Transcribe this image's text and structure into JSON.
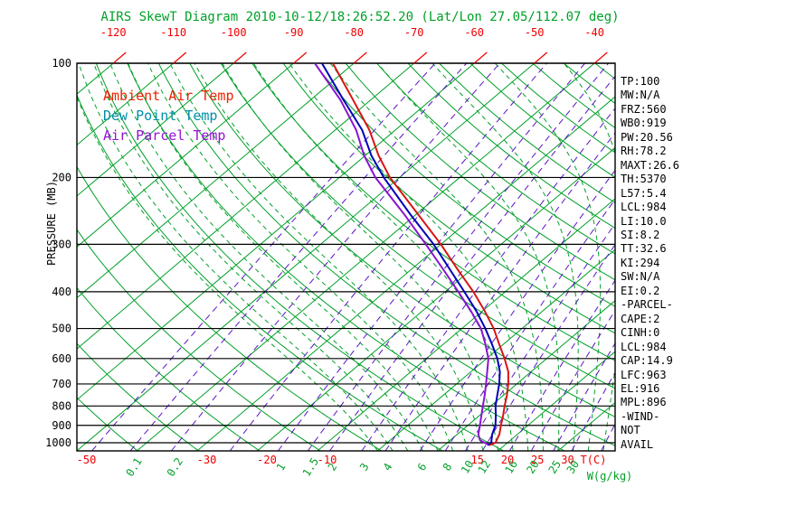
{
  "title": "AIRS SkewT Diagram 2010-10-12/18:26:52.20 (Lat/Lon 27.05/112.07 deg)",
  "colors": {
    "title_green": "#00a028",
    "grid_green": "#00a028",
    "mixing_violet": "#5a14c8",
    "temp_red": "#ee0000",
    "axis_black": "#000000"
  },
  "legend": {
    "items": [
      {
        "label": "Ambient Air Temp",
        "color": "#ee2200"
      },
      {
        "label": "Dew Point Temp",
        "color": "#0090a8"
      },
      {
        "label": "Air Parcel Temp",
        "color": "#9414d2"
      }
    ]
  },
  "chart_data": {
    "type": "line",
    "variant": "skew-t-log-p",
    "title": "AIRS SkewT Diagram 2010-10-12/18:26:52.20 (Lat/Lon 27.05/112.07 deg)",
    "xlabel": "T(C)",
    "x2label": "W(g/kg)",
    "ylabel": "PRESSURE (MB)",
    "y_axis": {
      "scale": "log",
      "range": [
        100,
        1050
      ],
      "ticks": [
        100,
        200,
        300,
        400,
        500,
        600,
        700,
        800,
        900,
        1000
      ]
    },
    "x_axis_top_ticks_c": [
      -120,
      -110,
      -100,
      -90,
      -80,
      -70,
      -60,
      -50,
      -40
    ],
    "x_axis_bottom_ticks_c": [
      -50,
      -30,
      -20,
      -10,
      15,
      20,
      25,
      30
    ],
    "mixing_ratio_labels_gkg": [
      0.1,
      0.2,
      1,
      1.5,
      2,
      3,
      4,
      6,
      8,
      10,
      12,
      16,
      20,
      25,
      30
    ],
    "grid": {
      "isotherms_c": {
        "start": -130,
        "end": 40,
        "step": 10
      },
      "dry_adiabats_K": {
        "start": 220,
        "end": 480,
        "step": 10
      },
      "moist_adiabats_start_c": {
        "start": 0,
        "end": 65,
        "step": 2.5
      },
      "mixing_ratio_lines_gkg": [
        0.05,
        0.1,
        0.2,
        0.5,
        1,
        1.5,
        2,
        3,
        4,
        6,
        8,
        10,
        12,
        16,
        20,
        25,
        30,
        40
      ]
    },
    "series": [
      {
        "name": "Ambient Air Temp",
        "color": "#d81414",
        "points_p_t": [
          [
            1015,
            17.5
          ],
          [
            1000,
            18.0
          ],
          [
            950,
            17.0
          ],
          [
            900,
            15.5
          ],
          [
            850,
            14.0
          ],
          [
            800,
            12.3
          ],
          [
            750,
            10.6
          ],
          [
            700,
            8.6
          ],
          [
            650,
            6.2
          ],
          [
            600,
            3.0
          ],
          [
            550,
            -0.7
          ],
          [
            500,
            -4.7
          ],
          [
            450,
            -9.6
          ],
          [
            400,
            -15.3
          ],
          [
            350,
            -22.2
          ],
          [
            300,
            -30.0
          ],
          [
            250,
            -39.7
          ],
          [
            200,
            -51.6
          ],
          [
            175,
            -57.8
          ],
          [
            150,
            -64.3
          ],
          [
            125,
            -72.9
          ],
          [
            100,
            -83.5
          ]
        ]
      },
      {
        "name": "Dew Point Temp",
        "color": "#0000b8",
        "points_p_t": [
          [
            1015,
            17.3
          ],
          [
            1000,
            17.3
          ],
          [
            950,
            15.8
          ],
          [
            900,
            14.6
          ],
          [
            850,
            12.8
          ],
          [
            800,
            10.8
          ],
          [
            750,
            9.0
          ],
          [
            700,
            7.1
          ],
          [
            650,
            4.8
          ],
          [
            600,
            1.8
          ],
          [
            550,
            -1.9
          ],
          [
            500,
            -6.1
          ],
          [
            450,
            -11.0
          ],
          [
            400,
            -16.8
          ],
          [
            350,
            -23.5
          ],
          [
            300,
            -31.2
          ],
          [
            250,
            -41.0
          ],
          [
            200,
            -52.6
          ],
          [
            175,
            -59.0
          ],
          [
            150,
            -65.5
          ],
          [
            125,
            -74.5
          ],
          [
            100,
            -85.3
          ]
        ]
      },
      {
        "name": "Air Parcel Temp",
        "color": "#8a14d2",
        "points_p_t": [
          [
            1015,
            17.4
          ],
          [
            984,
            14.9
          ],
          [
            950,
            13.5
          ],
          [
            900,
            12.0
          ],
          [
            850,
            10.4
          ],
          [
            800,
            8.7
          ],
          [
            750,
            6.9
          ],
          [
            700,
            4.9
          ],
          [
            650,
            2.7
          ],
          [
            600,
            0.3
          ],
          [
            550,
            -3.0
          ],
          [
            500,
            -6.8
          ],
          [
            450,
            -11.9
          ],
          [
            400,
            -17.8
          ],
          [
            350,
            -24.6
          ],
          [
            300,
            -32.5
          ],
          [
            250,
            -42.0
          ],
          [
            200,
            -54.0
          ],
          [
            175,
            -60.2
          ],
          [
            150,
            -66.5
          ],
          [
            125,
            -75.0
          ],
          [
            100,
            -86.5
          ]
        ]
      }
    ]
  },
  "stats_panel": {
    "lines": [
      "TP:100",
      "MW:N/A",
      "FRZ:560",
      "WB0:919",
      "PW:20.56",
      "RH:78.2",
      "MAXT:26.6",
      "TH:5370",
      "L57:5.4",
      "LCL:984",
      "LI:10.0",
      "SI:8.2",
      "TT:32.6",
      "KI:294",
      "SW:N/A",
      "EI:0.2",
      "-PARCEL-",
      "CAPE:2",
      "CINH:0",
      "LCL:984",
      "CAP:14.9",
      "LFC:963",
      "EL:916",
      "MPL:896",
      "-WIND-",
      "NOT",
      "AVAIL"
    ]
  }
}
